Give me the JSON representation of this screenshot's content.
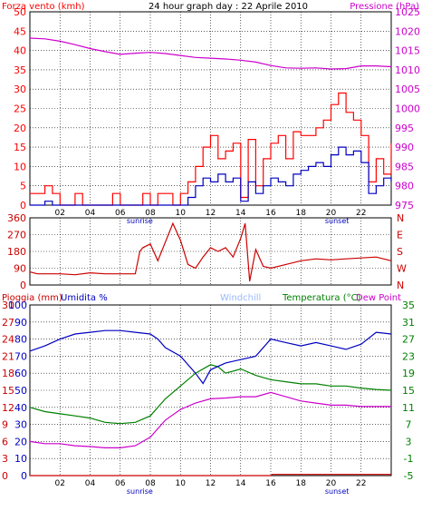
{
  "colors": {
    "background": "#ffffff",
    "frame": "#000000",
    "grid": "#000000",
    "wind": "#ff0000",
    "wind_max": "#ff0000",
    "wind_min": "#0000c0",
    "pressure": "#cc00cc",
    "direction": "#cc0000",
    "rain": "#cc0000",
    "humidity": "#0000c0",
    "temperature": "#008000",
    "dew_point": "#cc00cc",
    "windchill": "#9ab8ff",
    "title": "#000000"
  },
  "chart_data": [
    {
      "type": "line",
      "id": "wind-pressure",
      "title": "24 hour graph day : 22 Aprile 2010",
      "ylabel_left": "Forza vento (kmh)",
      "ylabel_right": "Pressione (hPa)",
      "x_ticks": [
        "02",
        "04",
        "06",
        "08",
        "10",
        "12",
        "14",
        "16",
        "18",
        "20",
        "22"
      ],
      "x_tick_hours": [
        2,
        4,
        6,
        8,
        10,
        12,
        14,
        16,
        18,
        20,
        22
      ],
      "sunrise_label": "sunrise",
      "sunrise_hour": 7.3,
      "sunset_label": "sunset",
      "sunset_hour": 20.4,
      "xlim": [
        0,
        24
      ],
      "ylim_left": [
        0,
        50
      ],
      "yticks_left": [
        0,
        5,
        10,
        15,
        20,
        25,
        30,
        35,
        40,
        45,
        50
      ],
      "ylim_right": [
        975,
        1025
      ],
      "yticks_right": [
        975,
        980,
        985,
        990,
        995,
        1000,
        1005,
        1010,
        1015,
        1020,
        1025
      ],
      "series": [
        {
          "name": "Pressione",
          "axis": "right",
          "x": [
            0,
            1,
            2,
            3,
            4,
            5,
            6,
            7,
            8,
            9,
            10,
            11,
            12,
            13,
            14,
            15,
            16,
            17,
            18,
            19,
            20,
            21,
            22,
            23,
            24
          ],
          "values": [
            1018.2,
            1018.0,
            1017.4,
            1016.5,
            1015.5,
            1014.7,
            1014.0,
            1014.3,
            1014.5,
            1014.2,
            1013.7,
            1013.2,
            1013.0,
            1012.8,
            1012.5,
            1012.0,
            1011.1,
            1010.5,
            1010.4,
            1010.5,
            1010.2,
            1010.3,
            1011.0,
            1011.0,
            1010.8
          ]
        },
        {
          "name": "max",
          "axis": "left",
          "x": [
            0,
            0.5,
            1,
            1.5,
            2,
            2.5,
            3,
            3.5,
            4,
            4.5,
            5,
            5.5,
            6,
            6.5,
            7,
            7.5,
            8,
            8.5,
            9,
            9.5,
            10,
            10.5,
            11,
            11.5,
            12,
            12.5,
            13,
            13.5,
            14,
            14.5,
            15,
            15.5,
            16,
            16.5,
            17,
            17.5,
            18,
            18.5,
            19,
            19.5,
            20,
            20.5,
            21,
            21.5,
            22,
            22.5,
            23,
            23.5,
            24
          ],
          "values": [
            3,
            3,
            5,
            3,
            0,
            0,
            3,
            0,
            0,
            0,
            0,
            3,
            0,
            0,
            0,
            3,
            0,
            3,
            3,
            0,
            3,
            6,
            10,
            15,
            18,
            12,
            14,
            16,
            2,
            17,
            5,
            12,
            16,
            18,
            12,
            19,
            18,
            18,
            20,
            22,
            26,
            29,
            24,
            22,
            18,
            6,
            12,
            8,
            16
          ]
        },
        {
          "name": "media",
          "axis": "left",
          "x": [
            0,
            0.5,
            1,
            1.5,
            2,
            2.5,
            3,
            3.5,
            4,
            4.5,
            5,
            5.5,
            6,
            6.5,
            7,
            7.5,
            8,
            8.5,
            9,
            9.5,
            10,
            10.5,
            11,
            11.5,
            12,
            12.5,
            13,
            13.5,
            14,
            14.5,
            15,
            15.5,
            16,
            16.5,
            17,
            17.5,
            18,
            18.5,
            19,
            19.5,
            20,
            20.5,
            21,
            21.5,
            22,
            22.5,
            23,
            23.5,
            24
          ],
          "values": [
            0,
            0,
            1,
            0,
            0,
            0,
            0,
            0,
            0,
            0,
            0,
            0,
            0,
            0,
            0,
            0,
            0,
            0,
            0,
            0,
            0,
            2,
            5,
            7,
            6,
            8,
            6,
            7,
            1,
            6,
            3,
            5,
            7,
            6,
            5,
            8,
            9,
            10,
            11,
            10,
            13,
            15,
            13,
            14,
            11,
            3,
            5,
            7,
            6
          ]
        }
      ]
    },
    {
      "type": "line",
      "id": "wind-direction",
      "ylim": [
        0,
        360
      ],
      "yticks": [
        0,
        90,
        180,
        270,
        360
      ],
      "direction_labels": [
        "N",
        "W",
        "S",
        "E",
        "N"
      ],
      "series": [
        {
          "name": "direzione",
          "x": [
            0,
            0.5,
            1,
            2,
            3,
            4,
            5,
            6,
            7,
            7.3,
            7.5,
            8,
            8.5,
            9,
            9.5,
            10,
            10.5,
            11,
            11.5,
            12,
            12.5,
            13,
            13.5,
            14,
            14.3,
            14.6,
            15,
            15.5,
            16,
            17,
            18,
            19,
            20,
            21,
            22,
            23,
            24
          ],
          "values": [
            70,
            60,
            60,
            60,
            55,
            65,
            60,
            60,
            60,
            180,
            200,
            220,
            130,
            230,
            330,
            240,
            110,
            90,
            150,
            200,
            180,
            200,
            150,
            250,
            330,
            20,
            190,
            100,
            90,
            110,
            130,
            140,
            135,
            140,
            145,
            150,
            130
          ]
        }
      ]
    },
    {
      "type": "line",
      "id": "rain-humidity-temperature",
      "ylabel_left_1": "Pioggia (mm)",
      "ylabel_left_2": "Umidita %",
      "legend": [
        "Windchill",
        "Temperatura (°C)",
        "Dew Point"
      ],
      "x_ticks": [
        "02",
        "04",
        "06",
        "08",
        "10",
        "12",
        "14",
        "16",
        "18",
        "20",
        "22"
      ],
      "x_tick_hours": [
        2,
        4,
        6,
        8,
        10,
        12,
        14,
        16,
        18,
        20,
        22
      ],
      "sunrise_label": "sunrise",
      "sunset_label": "sunset",
      "xlim": [
        0,
        24
      ],
      "ylim_rain": [
        0,
        30
      ],
      "yticks_rain": [
        0,
        3,
        6,
        9,
        12,
        15,
        18,
        21,
        24,
        27,
        30
      ],
      "ylim_humidity": [
        0,
        100
      ],
      "yticks_humidity": [
        0,
        10,
        20,
        30,
        40,
        50,
        60,
        70,
        80,
        90,
        100
      ],
      "ylim_temp": [
        -5,
        35
      ],
      "yticks_temp": [
        -5,
        -1,
        3,
        7,
        11,
        15,
        19,
        23,
        27,
        31,
        35
      ],
      "series": [
        {
          "name": "Umidita",
          "axis": "humidity",
          "x": [
            0,
            1,
            2,
            3,
            4,
            5,
            6,
            7,
            8,
            8.5,
            9,
            10,
            11,
            11.5,
            12,
            13,
            14,
            15,
            16,
            17,
            18,
            19,
            20,
            21,
            22,
            23,
            24
          ],
          "values": [
            73,
            76,
            80,
            83,
            84,
            85,
            85,
            84,
            83,
            80,
            75,
            70,
            60,
            54,
            62,
            66,
            68,
            70,
            80,
            78,
            76,
            78,
            76,
            74,
            77,
            84,
            83
          ]
        },
        {
          "name": "Temperatura",
          "axis": "temp",
          "x": [
            0,
            1,
            2,
            3,
            4,
            5,
            6,
            7,
            8,
            9,
            10,
            11,
            12,
            12.5,
            13,
            14,
            15,
            16,
            17,
            18,
            19,
            20,
            21,
            22,
            23,
            24
          ],
          "values": [
            11,
            10,
            9.5,
            9,
            8.5,
            7.5,
            7.2,
            7.5,
            9,
            13,
            16,
            19,
            21,
            20.5,
            19,
            20,
            18.5,
            17.5,
            17,
            16.5,
            16.5,
            16,
            16,
            15.5,
            15.2,
            15
          ]
        },
        {
          "name": "Dew Point",
          "axis": "temp",
          "x": [
            0,
            1,
            2,
            3,
            4,
            5,
            6,
            7,
            8,
            9,
            10,
            11,
            12,
            13,
            14,
            15,
            16,
            16.5,
            17,
            18,
            19,
            20,
            21,
            22,
            23,
            24
          ],
          "values": [
            3,
            2.5,
            2.5,
            2,
            1.8,
            1.5,
            1.5,
            2,
            4,
            8,
            10.5,
            12,
            13,
            13.2,
            13.5,
            13.5,
            14.5,
            14,
            13.5,
            12.5,
            12,
            11.5,
            11.5,
            11.2,
            11.2,
            11.2
          ]
        },
        {
          "name": "Pioggia",
          "axis": "rain",
          "x": [
            0,
            16,
            16.1,
            24
          ],
          "values": [
            0,
            0,
            0.2,
            0.2
          ]
        }
      ]
    }
  ]
}
